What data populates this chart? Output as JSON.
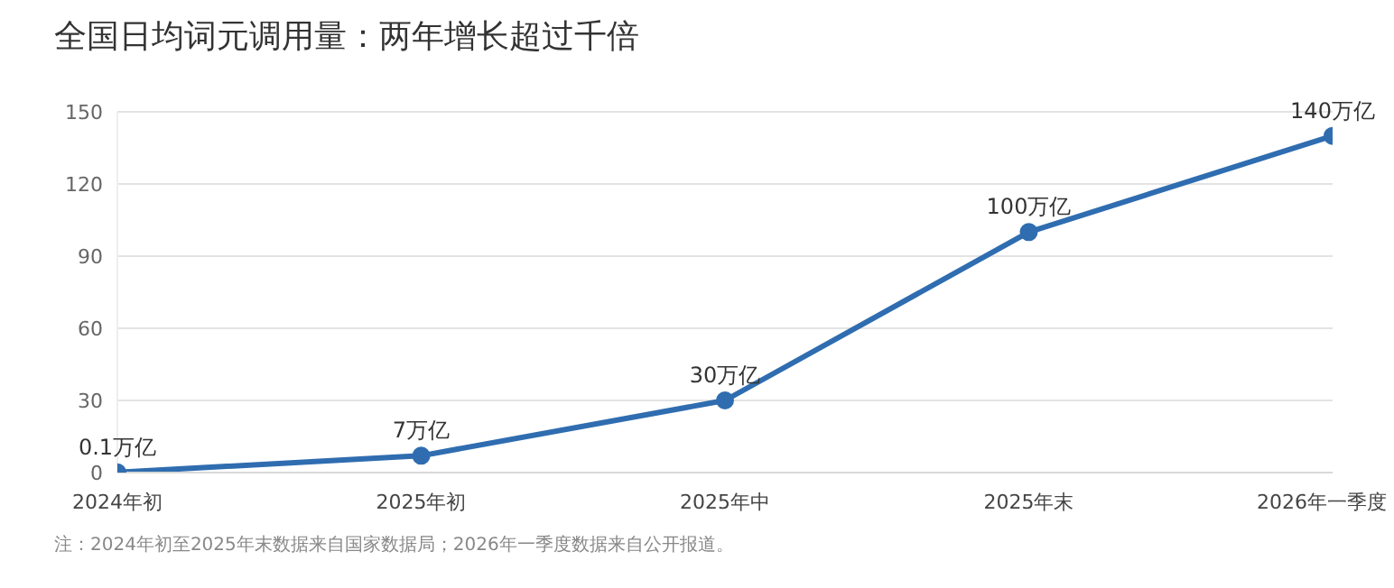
{
  "chart_data": {
    "type": "line",
    "title": "全国日均词元调用量：两年增长超过千倍",
    "categories": [
      "2024年初",
      "2025年初",
      "2025年中",
      "2025年末",
      "2026年一季度"
    ],
    "values": [
      0.1,
      7,
      30,
      100,
      140
    ],
    "value_labels": [
      "0.1万亿",
      "7万亿",
      "30万亿",
      "100万亿",
      "140万亿"
    ],
    "color": "#2f6db0",
    "marker": "circle",
    "line_style": "solid",
    "ylim": [
      0,
      150
    ],
    "yticks": [
      0,
      30,
      60,
      90,
      120,
      150
    ],
    "grid": "y",
    "legend": false,
    "annotations": [
      "注：2024年初至2025年末数据来自国家数据局；2026年一季度数据来自公开报道。"
    ]
  }
}
